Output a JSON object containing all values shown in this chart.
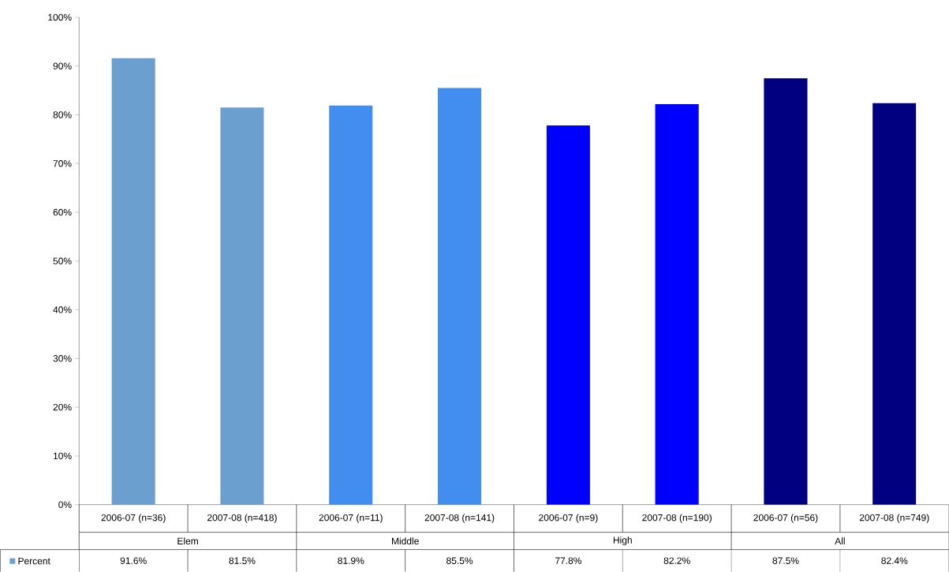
{
  "chart_data": {
    "type": "bar",
    "categories": [
      "2006-07 (n=36)",
      "2007-08 (n=418)",
      "2006-07 (n=11)",
      "2007-08 (n=141)",
      "2006-07 (n=9)",
      "2007-08 (n=190)",
      "2006-07 (n=56)",
      "2007-08 (n=749)"
    ],
    "series": [
      {
        "name": "Percent",
        "colors": [
          "#6b9fd0",
          "#6b9fd0",
          "#418ef0",
          "#418ef0",
          "#0000ff",
          "#0000ff",
          "#000080",
          "#000080"
        ],
        "values": [
          91.6,
          81.5,
          81.9,
          85.5,
          77.8,
          82.2,
          87.5,
          82.4
        ],
        "value_labels": [
          "91.6%",
          "81.5%",
          "81.9%",
          "85.5%",
          "77.8%",
          "82.2%",
          "87.5%",
          "82.4%"
        ]
      }
    ],
    "annotations": [
      "Elem",
      "Middle",
      "High",
      "All"
    ],
    "ylim": [
      0,
      100
    ],
    "yticks": [
      {
        "value": 0,
        "label": "0%"
      },
      {
        "value": 10,
        "label": "10%"
      },
      {
        "value": 20,
        "label": "20%"
      },
      {
        "value": 30,
        "label": "30%"
      },
      {
        "value": 40,
        "label": "40%"
      },
      {
        "value": 50,
        "label": "50%"
      },
      {
        "value": 60,
        "label": "60%"
      },
      {
        "value": 70,
        "label": "70%"
      },
      {
        "value": 80,
        "label": "80%"
      },
      {
        "value": 90,
        "label": "90%"
      },
      {
        "value": 100,
        "label": "100%"
      }
    ],
    "legend": "bottom left"
  }
}
